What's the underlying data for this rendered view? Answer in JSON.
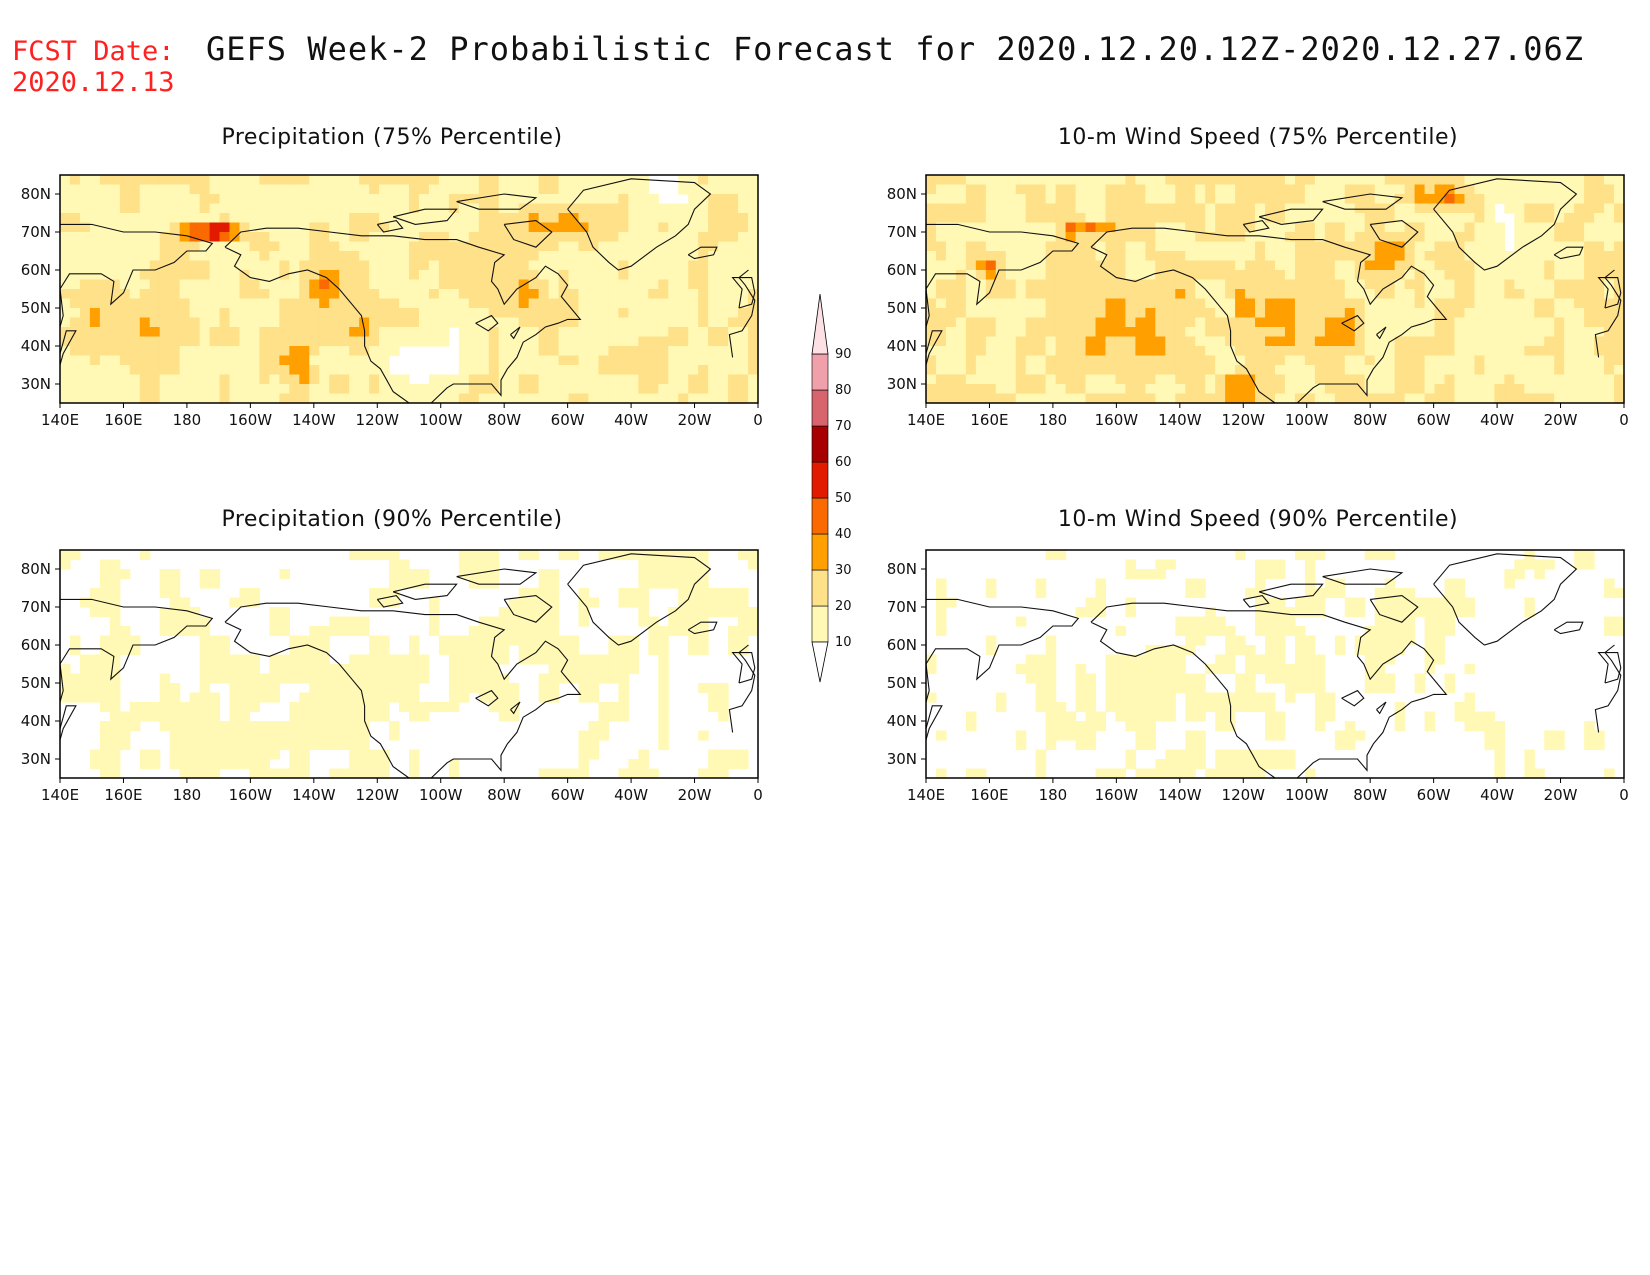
{
  "fcst": {
    "label": "FCST Date:",
    "date": "2020.12.13"
  },
  "title": "GEFS Week-2 Probabilistic Forecast for 2020.12.20.12Z-2020.12.27.06Z",
  "panels": [
    {
      "title": "Precipitation (75% Percentile)",
      "field": "precip75"
    },
    {
      "title": "10-m Wind Speed (75% Percentile)",
      "field": "wind75"
    },
    {
      "title": "Precipitation (90% Percentile)",
      "field": "precip90"
    },
    {
      "title": "10-m Wind Speed (90% Percentile)",
      "field": "wind90"
    }
  ],
  "map": {
    "lon_range": [
      140,
      360
    ],
    "lat_range": [
      25,
      85
    ],
    "lon_ticks": [
      "140E",
      "160E",
      "180",
      "160W",
      "140W",
      "120W",
      "100W",
      "80W",
      "60W",
      "40W",
      "20W",
      "0"
    ],
    "lat_ticks": [
      "80N",
      "70N",
      "60N",
      "50N",
      "40N",
      "30N"
    ]
  },
  "colorbar": {
    "levels": [
      "10",
      "20",
      "30",
      "40",
      "50",
      "60",
      "70",
      "80",
      "90"
    ],
    "colors": [
      "#fff9b5",
      "#ffe189",
      "#ffa000",
      "#fb6a00",
      "#e21a00",
      "#a60000",
      "#d8646e",
      "#f0a0aa",
      "#fde0e4"
    ]
  }
}
